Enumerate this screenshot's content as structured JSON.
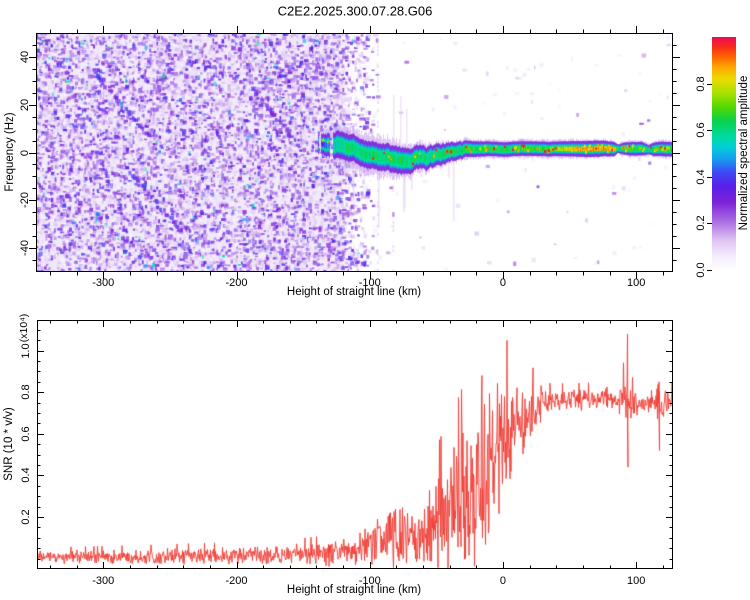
{
  "title": "C2E2.2025.300.07.28.G06",
  "colors": {
    "snr_line": "#ee3b33",
    "axis": "#000000",
    "background": "#ffffff",
    "noise_background": "#f1eafb"
  },
  "top_panel": {
    "ylabel": "Frequency (Hz)",
    "xlabel": "Height of straight line (km)",
    "x_range": [
      -350.5,
      127.6
    ],
    "y_range": [
      -50,
      50
    ],
    "x_ticks": [
      -300,
      -200,
      -100,
      0,
      100
    ],
    "x_tick_labels": [
      "-300",
      "-200",
      "-100",
      "0",
      "100"
    ],
    "y_ticks": [
      -40,
      -20,
      0,
      20,
      40
    ],
    "y_tick_labels": [
      "-40",
      "-20",
      "0",
      "20",
      "40"
    ],
    "x_minor_step": 20,
    "y_minor_step": 5
  },
  "colorbar": {
    "label": "Normalized spectral amplitude",
    "range": [
      0,
      1
    ],
    "ticks": [
      0.0,
      0.2,
      0.4,
      0.6,
      0.8
    ],
    "tick_labels": [
      "0.0",
      "0.2",
      "0.4",
      "0.6",
      "0.8"
    ],
    "colormap": [
      [
        0.0,
        "#ffffff"
      ],
      [
        0.06,
        "#f4ecfc"
      ],
      [
        0.13,
        "#ddc3f3"
      ],
      [
        0.21,
        "#ab6ce4"
      ],
      [
        0.29,
        "#7c24da"
      ],
      [
        0.36,
        "#5a1fe8"
      ],
      [
        0.42,
        "#3e4af5"
      ],
      [
        0.48,
        "#16a2f0"
      ],
      [
        0.53,
        "#00cfd6"
      ],
      [
        0.58,
        "#00dc96"
      ],
      [
        0.64,
        "#09d24e"
      ],
      [
        0.7,
        "#55d800"
      ],
      [
        0.76,
        "#abe100"
      ],
      [
        0.82,
        "#ecdb00"
      ],
      [
        0.87,
        "#ffa800"
      ],
      [
        0.92,
        "#ff5c00"
      ],
      [
        0.96,
        "#f62a1e"
      ],
      [
        1.0,
        "#ee0b57"
      ]
    ]
  },
  "bottom_panel": {
    "ylabel": "SNR (10 * v/v)",
    "y_scale_note": "(x10⁴)",
    "xlabel": "Height of straight line (km)",
    "x_range": [
      -350.5,
      127.6
    ],
    "y_range": [
      -0.05,
      1.147
    ],
    "x_ticks": [
      -300,
      -200,
      -100,
      0,
      100
    ],
    "x_tick_labels": [
      "-300",
      "-200",
      "-100",
      "0",
      "100"
    ],
    "y_ticks": [
      0.2,
      0.4,
      0.6,
      0.8,
      1.0
    ],
    "y_tick_labels": [
      "0.2",
      "0.4",
      "0.6",
      "0.8",
      "1.0"
    ],
    "x_minor_step": 20,
    "y_minor_step": 0.05
  },
  "render": {
    "seed_spectrogram": 7,
    "seed_snr": 1234
  },
  "chart_data": [
    {
      "type": "heatmap",
      "name": "spectrogram",
      "xlabel": "Height of straight line (km)",
      "ylabel": "Frequency (Hz)",
      "x_range_km": [
        -350.5,
        127.6
      ],
      "y_range_hz": [
        -50,
        50
      ],
      "noise": {
        "dense_end_km": -120,
        "fade_end_km": -92,
        "scatter_prob": 0.012
      },
      "signal_track": [
        [
          -139,
          4.0,
          0.3,
          2.0,
          5.0
        ],
        [
          -132,
          3.0,
          0.45,
          2.5,
          6.5
        ],
        [
          -125,
          2.5,
          0.55,
          3.0,
          7.5
        ],
        [
          -118,
          1.5,
          0.6,
          3.0,
          8.0
        ],
        [
          -110,
          0.5,
          0.62,
          3.0,
          8.0
        ],
        [
          -102,
          -0.5,
          0.6,
          3.0,
          8.5
        ],
        [
          -94,
          -2.0,
          0.62,
          3.0,
          8.5
        ],
        [
          -86,
          -3.2,
          0.6,
          3.0,
          8.0
        ],
        [
          -78,
          -3.5,
          0.62,
          3.0,
          7.5
        ],
        [
          -71,
          -2.8,
          0.6,
          2.8,
          7.0
        ],
        [
          -64,
          -1.5,
          0.62,
          2.6,
          6.5
        ],
        [
          -57,
          -2.2,
          0.6,
          2.5,
          6.0
        ],
        [
          -50,
          -1.0,
          0.62,
          2.4,
          5.5
        ],
        [
          -43,
          -0.2,
          0.62,
          2.2,
          5.0
        ],
        [
          -36,
          0.6,
          0.64,
          2.0,
          4.5
        ],
        [
          -28,
          1.0,
          0.66,
          1.8,
          4.2
        ],
        [
          -20,
          1.3,
          0.66,
          1.7,
          4.0
        ],
        [
          -10,
          1.5,
          0.66,
          1.6,
          3.8
        ],
        [
          0,
          1.5,
          0.66,
          1.6,
          3.8
        ],
        [
          20,
          1.5,
          0.68,
          1.6,
          3.8
        ],
        [
          40,
          1.5,
          0.72,
          1.6,
          3.8
        ],
        [
          52,
          1.5,
          0.82,
          1.7,
          3.8
        ],
        [
          70,
          1.5,
          0.88,
          1.8,
          3.8
        ],
        [
          83,
          1.5,
          0.85,
          1.6,
          3.6
        ],
        [
          86,
          1.5,
          0.6,
          0.9,
          2.0
        ],
        [
          90,
          1.5,
          0.62,
          1.3,
          3.0
        ],
        [
          96,
          1.5,
          0.68,
          1.5,
          3.5
        ],
        [
          104,
          1.5,
          0.66,
          1.5,
          3.5
        ],
        [
          109,
          1.2,
          0.55,
          1.0,
          2.4
        ],
        [
          113,
          1.4,
          0.64,
          1.5,
          3.4
        ],
        [
          120,
          1.5,
          0.7,
          1.6,
          3.6
        ],
        [
          127.6,
          1.5,
          0.72,
          1.6,
          3.6
        ]
      ],
      "hotspot_prob": [
        [
          -139,
          0.1
        ],
        [
          -30,
          0.16
        ],
        [
          50,
          0.2
        ],
        [
          52,
          0.5
        ],
        [
          84,
          0.45
        ],
        [
          88,
          0.2
        ],
        [
          95,
          0.28
        ],
        [
          127.6,
          0.28
        ]
      ],
      "streak_km_range": [
        -133,
        -36
      ]
    },
    {
      "type": "line",
      "name": "SNR",
      "color": "#ee3b33",
      "x_range_km": [
        -350.5,
        127.6
      ],
      "y_range": [
        -0.05,
        1.147
      ],
      "envelope": [
        [
          -350,
          0.005,
          0.022
        ],
        [
          -300,
          0.007,
          0.024
        ],
        [
          -250,
          0.01,
          0.027
        ],
        [
          -200,
          0.013,
          0.03
        ],
        [
          -160,
          0.016,
          0.034
        ],
        [
          -135,
          0.022,
          0.04
        ],
        [
          -118,
          0.03,
          0.05
        ],
        [
          -108,
          0.05,
          0.07
        ],
        [
          -100,
          0.07,
          0.09
        ],
        [
          -92,
          0.09,
          0.11
        ],
        [
          -84,
          0.11,
          0.13
        ],
        [
          -76,
          0.1,
          0.11
        ],
        [
          -68,
          0.09,
          0.1
        ],
        [
          -60,
          0.12,
          0.13
        ],
        [
          -52,
          0.16,
          0.16
        ],
        [
          -44,
          0.21,
          0.19
        ],
        [
          -36,
          0.25,
          0.22
        ],
        [
          -28,
          0.3,
          0.26
        ],
        [
          -20,
          0.38,
          0.3
        ],
        [
          -14,
          0.45,
          0.33
        ],
        [
          -8,
          0.5,
          0.28
        ],
        [
          -2,
          0.55,
          0.24
        ],
        [
          4,
          0.58,
          0.21
        ],
        [
          10,
          0.62,
          0.18
        ],
        [
          16,
          0.66,
          0.14
        ],
        [
          22,
          0.7,
          0.1
        ],
        [
          28,
          0.74,
          0.06
        ],
        [
          35,
          0.755,
          0.04
        ],
        [
          50,
          0.765,
          0.035
        ],
        [
          70,
          0.77,
          0.035
        ],
        [
          85,
          0.765,
          0.045
        ],
        [
          90,
          0.78,
          0.07
        ],
        [
          93,
          0.77,
          0.1
        ],
        [
          96,
          0.75,
          0.06
        ],
        [
          102,
          0.74,
          0.04
        ],
        [
          110,
          0.75,
          0.04
        ],
        [
          115,
          0.74,
          0.06
        ],
        [
          118,
          0.72,
          0.09
        ],
        [
          121,
          0.76,
          0.05
        ],
        [
          128,
          0.765,
          0.035
        ]
      ],
      "spikes": [
        {
          "km": -16,
          "hi": 0.88,
          "lo": 0.1
        },
        {
          "km": 93.2,
          "hi": 1.08,
          "lo": 0.44
        },
        {
          "km": 116.8,
          "hi": 0.85,
          "lo": 0.52
        }
      ]
    }
  ]
}
